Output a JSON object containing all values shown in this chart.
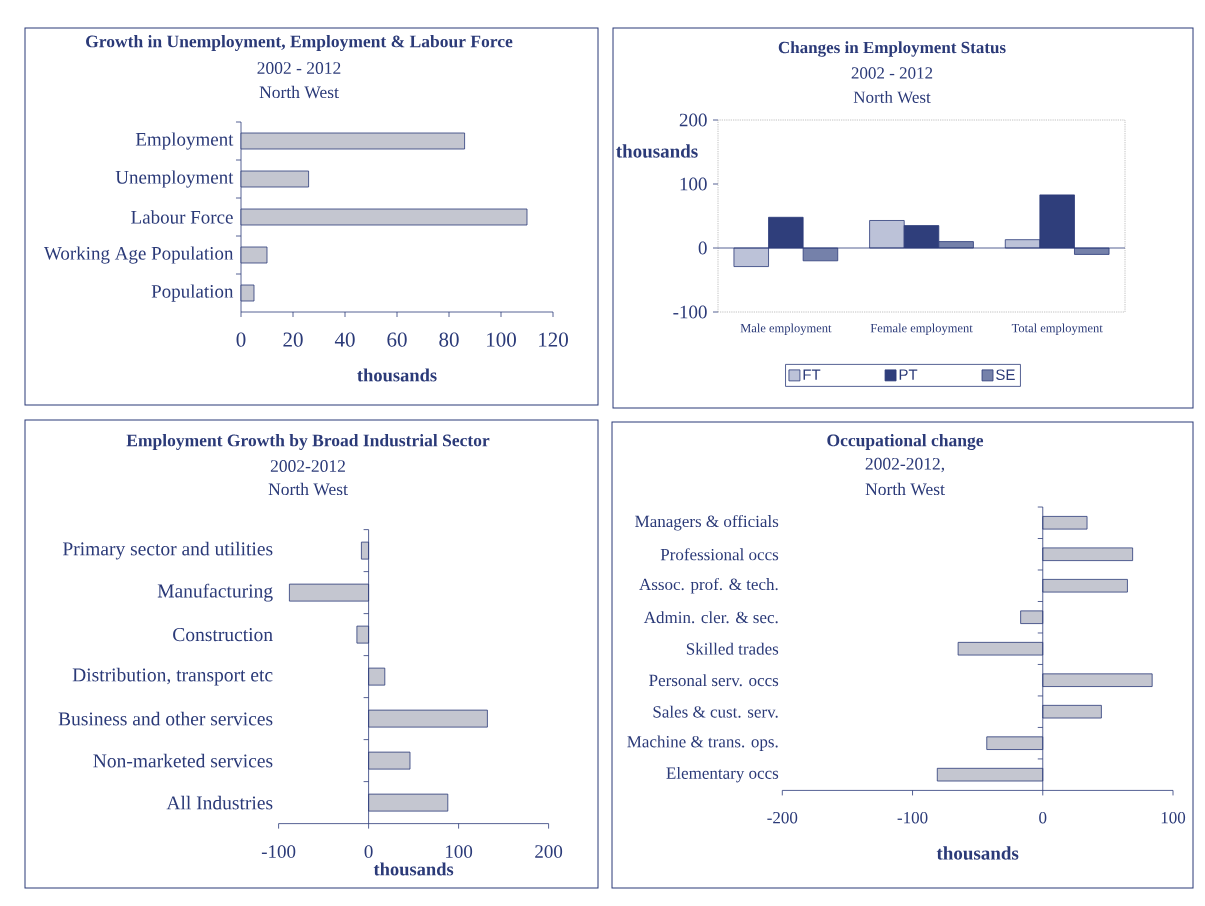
{
  "chart_data": [
    {
      "type": "bar",
      "orientation": "horizontal",
      "title": "Growth in Unemployment, Employment & Labour Force",
      "subtitle": "2002 - 2012",
      "annotations": [
        "North West"
      ],
      "categories": [
        "Employment",
        "Unemployment",
        "Labour Force",
        "Working Age Population",
        "Population"
      ],
      "values": [
        86,
        26,
        110,
        10,
        5
      ],
      "color": "#c4c6d0",
      "xlim": [
        0,
        120
      ],
      "xticks": [
        0,
        20,
        40,
        60,
        80,
        100,
        120
      ],
      "xlabel": "thousands"
    },
    {
      "type": "bar",
      "title": "Changes in Employment Status",
      "subtitle": "2002 - 2012",
      "annotations": [
        "North West"
      ],
      "categories": [
        "Male employment",
        "Female employment",
        "Total employment"
      ],
      "series": [
        {
          "name": "FT",
          "color": "#bcc2d8",
          "values": [
            -29,
            43,
            13
          ]
        },
        {
          "name": "PT",
          "color": "#2f3e7b",
          "values": [
            48,
            35,
            83
          ]
        },
        {
          "name": "SE",
          "color": "#7581aa",
          "values": [
            -20,
            10,
            -10
          ]
        }
      ],
      "ylim": [
        -100,
        200
      ],
      "yticks": [
        -100,
        0,
        100,
        200
      ],
      "ylabel": "thousands",
      "legend": "bottom",
      "ref_lines": [
        {
          "axis": "y",
          "value": 0
        }
      ]
    },
    {
      "type": "bar",
      "orientation": "horizontal",
      "title": "Employment Growth by Broad Industrial Sector",
      "subtitle": "2002-2012",
      "annotations": [
        "North West"
      ],
      "categories": [
        "Primary sector and utilities",
        "Manufacturing",
        "Construction",
        "Distribution, transport etc",
        "Business and other services",
        "Non-marketed services",
        "All Industries"
      ],
      "values": [
        -8,
        -88,
        -13,
        18,
        132,
        46,
        88
      ],
      "color": "#c4c6d0",
      "xlim": [
        -100,
        200
      ],
      "xticks": [
        -100,
        0,
        100,
        200
      ],
      "xlabel": "thousands",
      "ref_lines": [
        {
          "axis": "x",
          "value": 0
        }
      ]
    },
    {
      "type": "bar",
      "orientation": "horizontal",
      "title": "Occupational change",
      "subtitle": "2002-2012,",
      "annotations": [
        "North West"
      ],
      "categories": [
        "Managers & officials",
        "Professional occs",
        "Assoc. prof. & tech.",
        "Admin. cler. & sec.",
        "Skilled trades",
        "Personal serv. occs",
        "Sales & cust. serv.",
        "Machine & trans. ops.",
        "Elementary occs"
      ],
      "values": [
        34,
        69,
        65,
        -17,
        -65,
        84,
        45,
        -43,
        -81
      ],
      "color": "#c4c6d0",
      "xlim": [
        -200,
        100
      ],
      "xticks": [
        -200,
        -100,
        0,
        100
      ],
      "xlabel": "thousands",
      "ref_lines": [
        {
          "axis": "x",
          "value": 0
        }
      ]
    }
  ]
}
